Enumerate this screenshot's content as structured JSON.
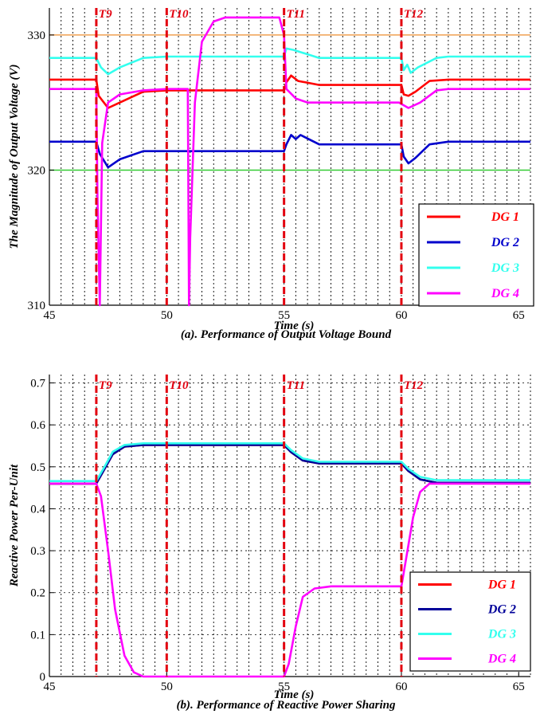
{
  "chart_data": [
    {
      "type": "line",
      "title": "",
      "caption": "(a). Performance of Output Voltage Bound",
      "xlabel": "Time (s)",
      "ylabel": "The Magnitude of Output Voltage (V)",
      "xlim": [
        45,
        65.5
      ],
      "ylim": [
        310,
        332
      ],
      "xticks": [
        45,
        50,
        55,
        60,
        65
      ],
      "yticks": [
        310,
        320,
        330
      ],
      "grid": "vertical dashed",
      "legend_position": "bottom-right",
      "events": [
        {
          "label": "T9",
          "x": 47
        },
        {
          "label": "T10",
          "x": 50
        },
        {
          "label": "T11",
          "x": 55
        },
        {
          "label": "T12",
          "x": 60
        }
      ],
      "bounds": [
        {
          "value": 330,
          "color": "#f0a050"
        },
        {
          "value": 320,
          "color": "#33cc33"
        }
      ],
      "series": [
        {
          "name": "DG 1",
          "color": "#ff0000",
          "points": [
            [
              45,
              326.7
            ],
            [
              47,
              326.7
            ],
            [
              47.1,
              325.5
            ],
            [
              47.5,
              324.6
            ],
            [
              48,
              325.0
            ],
            [
              49,
              325.8
            ],
            [
              50,
              325.9
            ],
            [
              55,
              325.9
            ],
            [
              55.1,
              326.5
            ],
            [
              55.3,
              327.0
            ],
            [
              55.6,
              326.6
            ],
            [
              56.5,
              326.3
            ],
            [
              60,
              326.3
            ],
            [
              60.1,
              325.6
            ],
            [
              60.3,
              325.5
            ],
            [
              60.6,
              325.8
            ],
            [
              61.2,
              326.6
            ],
            [
              62,
              326.7
            ],
            [
              65.5,
              326.7
            ]
          ]
        },
        {
          "name": "DG 2",
          "color": "#0000cc",
          "points": [
            [
              45,
              322.1
            ],
            [
              47,
              322.1
            ],
            [
              47.15,
              321.2
            ],
            [
              47.5,
              320.2
            ],
            [
              48,
              320.8
            ],
            [
              49,
              321.4
            ],
            [
              50,
              321.4
            ],
            [
              55,
              321.4
            ],
            [
              55.1,
              321.9
            ],
            [
              55.3,
              322.6
            ],
            [
              55.5,
              322.3
            ],
            [
              55.7,
              322.6
            ],
            [
              56.5,
              321.9
            ],
            [
              60,
              321.9
            ],
            [
              60.1,
              321.0
            ],
            [
              60.3,
              320.5
            ],
            [
              60.6,
              320.9
            ],
            [
              61.2,
              321.9
            ],
            [
              62,
              322.1
            ],
            [
              65.5,
              322.1
            ]
          ]
        },
        {
          "name": "DG 3",
          "color": "#33ffee",
          "points": [
            [
              45,
              328.3
            ],
            [
              47,
              328.3
            ],
            [
              47.2,
              327.6
            ],
            [
              47.5,
              327.1
            ],
            [
              48,
              327.6
            ],
            [
              49,
              328.3
            ],
            [
              50,
              328.4
            ],
            [
              55,
              328.4
            ],
            [
              55.1,
              329.0
            ],
            [
              55.4,
              328.9
            ],
            [
              56.5,
              328.3
            ],
            [
              60,
              328.3
            ],
            [
              60.1,
              327.4
            ],
            [
              60.25,
              327.8
            ],
            [
              60.4,
              327.2
            ],
            [
              60.7,
              327.6
            ],
            [
              61.5,
              328.3
            ],
            [
              62,
              328.4
            ],
            [
              65.5,
              328.4
            ]
          ]
        },
        {
          "name": "DG 4",
          "color": "#ff00ff",
          "points": [
            [
              45,
              326.0
            ],
            [
              47,
              326.0
            ],
            [
              47.05,
              318
            ],
            [
              47.15,
              310
            ],
            [
              47.25,
              322
            ],
            [
              47.5,
              325.0
            ],
            [
              48,
              325.6
            ],
            [
              49,
              325.9
            ],
            [
              50,
              326.0
            ],
            [
              50.9,
              326.0
            ],
            [
              50.95,
              310
            ],
            [
              51.0,
              315
            ],
            [
              51.2,
              325
            ],
            [
              51.5,
              329.5
            ],
            [
              52,
              331
            ],
            [
              52.5,
              331.3
            ],
            [
              54.8,
              331.3
            ],
            [
              55.0,
              330
            ],
            [
              55.1,
              326
            ],
            [
              55.5,
              325.3
            ],
            [
              56,
              325.0
            ],
            [
              59.9,
              325.0
            ],
            [
              60.1,
              324.8
            ],
            [
              60.3,
              324.6
            ],
            [
              60.8,
              325.0
            ],
            [
              61.5,
              325.9
            ],
            [
              62,
              326.0
            ],
            [
              65.5,
              326.0
            ]
          ]
        }
      ]
    },
    {
      "type": "line",
      "title": "",
      "caption": "(b). Performance of Reactive Power Sharing",
      "xlabel": "Time (s)",
      "ylabel": "Reactive Power Per-Unit",
      "xlim": [
        45,
        65.5
      ],
      "ylim": [
        0,
        0.72
      ],
      "xticks": [
        45,
        50,
        55,
        60,
        65
      ],
      "yticks": [
        0,
        0.1,
        0.2,
        0.3,
        0.4,
        0.5,
        0.6,
        0.7
      ],
      "ytick_labels": [
        "0",
        "0.1",
        "0.2",
        "0.3",
        "0.4",
        "0.5",
        "0.6",
        "0.7"
      ],
      "grid": "vertical dashed",
      "legend_position": "bottom-right",
      "events": [
        {
          "label": "T9",
          "x": 47
        },
        {
          "label": "T10",
          "x": 50
        },
        {
          "label": "T11",
          "x": 55
        },
        {
          "label": "T12",
          "x": 60
        }
      ],
      "series": [
        {
          "name": "DG 1",
          "color": "#ff0000",
          "points": [
            [
              45,
              0.46
            ],
            [
              47,
              0.46
            ],
            [
              47.3,
              0.49
            ],
            [
              47.7,
              0.53
            ],
            [
              48.2,
              0.548
            ],
            [
              49,
              0.552
            ],
            [
              55,
              0.552
            ],
            [
              55.3,
              0.535
            ],
            [
              55.8,
              0.515
            ],
            [
              56.5,
              0.508
            ],
            [
              60,
              0.508
            ],
            [
              60.3,
              0.49
            ],
            [
              60.8,
              0.47
            ],
            [
              61.5,
              0.462
            ],
            [
              65.5,
              0.462
            ]
          ]
        },
        {
          "name": "DG 2",
          "color": "#000099",
          "points": [
            [
              45,
              0.46
            ],
            [
              47,
              0.46
            ],
            [
              47.3,
              0.49
            ],
            [
              47.7,
              0.53
            ],
            [
              48.2,
              0.548
            ],
            [
              49,
              0.552
            ],
            [
              55,
              0.552
            ],
            [
              55.3,
              0.535
            ],
            [
              55.8,
              0.515
            ],
            [
              56.5,
              0.508
            ],
            [
              60,
              0.508
            ],
            [
              60.3,
              0.49
            ],
            [
              60.8,
              0.47
            ],
            [
              61.5,
              0.462
            ],
            [
              65.5,
              0.462
            ]
          ]
        },
        {
          "name": "DG 3",
          "color": "#33ffee",
          "points": [
            [
              45,
              0.466
            ],
            [
              47,
              0.466
            ],
            [
              47.3,
              0.495
            ],
            [
              47.7,
              0.536
            ],
            [
              48.2,
              0.552
            ],
            [
              49,
              0.556
            ],
            [
              55,
              0.556
            ],
            [
              55.3,
              0.54
            ],
            [
              55.8,
              0.52
            ],
            [
              56.5,
              0.512
            ],
            [
              60,
              0.512
            ],
            [
              60.3,
              0.495
            ],
            [
              60.8,
              0.476
            ],
            [
              61.5,
              0.468
            ],
            [
              65.5,
              0.468
            ]
          ]
        },
        {
          "name": "DG 4",
          "color": "#ff00ff",
          "points": [
            [
              45,
              0.46
            ],
            [
              47,
              0.46
            ],
            [
              47.2,
              0.43
            ],
            [
              47.5,
              0.3
            ],
            [
              47.8,
              0.16
            ],
            [
              48.2,
              0.05
            ],
            [
              48.6,
              0.01
            ],
            [
              49,
              0.0
            ],
            [
              55,
              0.0
            ],
            [
              55.2,
              0.03
            ],
            [
              55.5,
              0.12
            ],
            [
              55.8,
              0.19
            ],
            [
              56.3,
              0.21
            ],
            [
              57,
              0.215
            ],
            [
              60,
              0.215
            ],
            [
              60.2,
              0.28
            ],
            [
              60.5,
              0.38
            ],
            [
              60.8,
              0.44
            ],
            [
              61.2,
              0.46
            ],
            [
              65.5,
              0.46
            ]
          ]
        }
      ]
    }
  ]
}
